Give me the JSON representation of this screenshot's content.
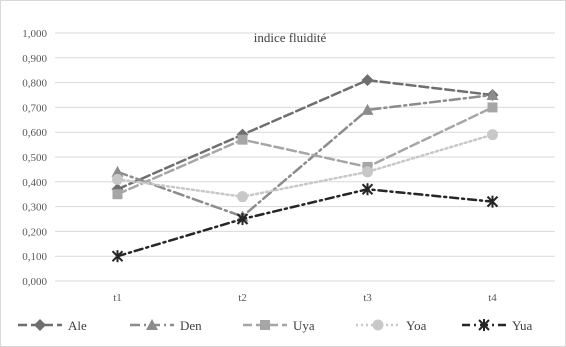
{
  "chart_data": {
    "type": "line",
    "title": "indice fluidité",
    "xlabel": "",
    "ylabel": "",
    "categories": [
      "t1",
      "t2",
      "t3",
      "t4"
    ],
    "yticks": [
      "0,000",
      "0,100",
      "0,200",
      "0,300",
      "0,400",
      "0,500",
      "0,600",
      "0,700",
      "0,800",
      "0,900",
      "1,000"
    ],
    "ylim": [
      0,
      1
    ],
    "grid": true,
    "legend_position": "bottom",
    "series": [
      {
        "name": "Ale",
        "values": [
          0.37,
          0.59,
          0.81,
          0.75
        ],
        "color": "#6f6f6f",
        "dash": "long-dash",
        "marker": "diamond"
      },
      {
        "name": "Den",
        "values": [
          0.44,
          0.26,
          0.69,
          0.75
        ],
        "color": "#8c8c8c",
        "dash": "long-dash-dot",
        "marker": "triangle"
      },
      {
        "name": "Uya",
        "values": [
          0.35,
          0.57,
          0.46,
          0.7
        ],
        "color": "#a6a6a6",
        "dash": "long-dash",
        "marker": "square"
      },
      {
        "name": "Yoa",
        "values": [
          0.41,
          0.34,
          0.44,
          0.59
        ],
        "color": "#c8c8c8",
        "dash": "dotted",
        "marker": "circle"
      },
      {
        "name": "Yua",
        "values": [
          0.1,
          0.25,
          0.37,
          0.32
        ],
        "color": "#262626",
        "dash": "dash-dot",
        "marker": "star"
      }
    ]
  }
}
